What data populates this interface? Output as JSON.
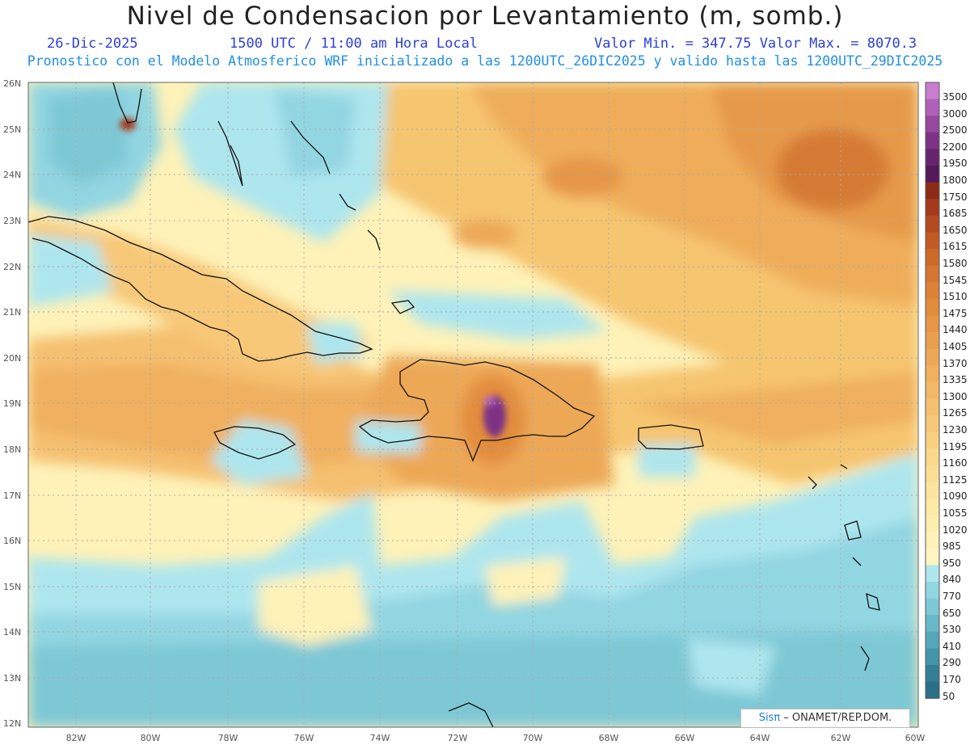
{
  "title": "Nivel de Condensacion por Levantamiento (m, somb.)",
  "date": "26-Dic-2025",
  "time": "1500 UTC / 11:00 am Hora Local",
  "stats": "Valor Min. = 347.75  Valor Max. = 8070.3",
  "forecast": "Pronostico con el Modelo Atmosferico WRF inicializado a las 1200UTC_26DIC2025 y valido hasta las  1200UTC_29DIC2025",
  "lat_labels": [
    "26N",
    "25N",
    "24N",
    "23N",
    "22N",
    "21N",
    "20N",
    "19N",
    "18N",
    "17N",
    "16N",
    "15N",
    "14N",
    "13N",
    "12N"
  ],
  "lon_labels": [
    "82W",
    "80W",
    "78W",
    "76W",
    "74W",
    "72W",
    "70W",
    "68W",
    "66W",
    "64W",
    "62W",
    "60W"
  ],
  "colorbar": {
    "levels": [
      "3500",
      "3000",
      "2500",
      "2200",
      "1950",
      "1800",
      "1750",
      "1685",
      "1650",
      "1615",
      "1580",
      "1545",
      "1510",
      "1475",
      "1440",
      "1405",
      "1370",
      "1335",
      "1300",
      "1265",
      "1230",
      "1195",
      "1160",
      "1125",
      "1090",
      "1055",
      "1020",
      "985",
      "950",
      "840",
      "770",
      "650",
      "530",
      "410",
      "290",
      "170",
      "50"
    ],
    "colors": [
      "#c97ecf",
      "#b060b8",
      "#96479e",
      "#7d3285",
      "#66246e",
      "#521a58",
      "#8c2a18",
      "#a33a1c",
      "#b44a20",
      "#c25a24",
      "#cd6a2a",
      "#d57632",
      "#dc8238",
      "#e28c3e",
      "#e69646",
      "#ea9f4e",
      "#eda856",
      "#f0b05e",
      "#f3b866",
      "#f5c06f",
      "#f7c878",
      "#f9d082",
      "#fad88c",
      "#fbde96",
      "#fce4a0",
      "#fde9a8",
      "#fdeeb0",
      "#fef2b8",
      "#fef5c0",
      "#aee6ee",
      "#92d6e2",
      "#7ec8d6",
      "#69b8c8",
      "#55a6b8",
      "#4595a8",
      "#357f96",
      "#2a6f86"
    ]
  },
  "credit": {
    "logo": "Sisπ",
    "text": " – ONAMET/REP.DOM."
  }
}
